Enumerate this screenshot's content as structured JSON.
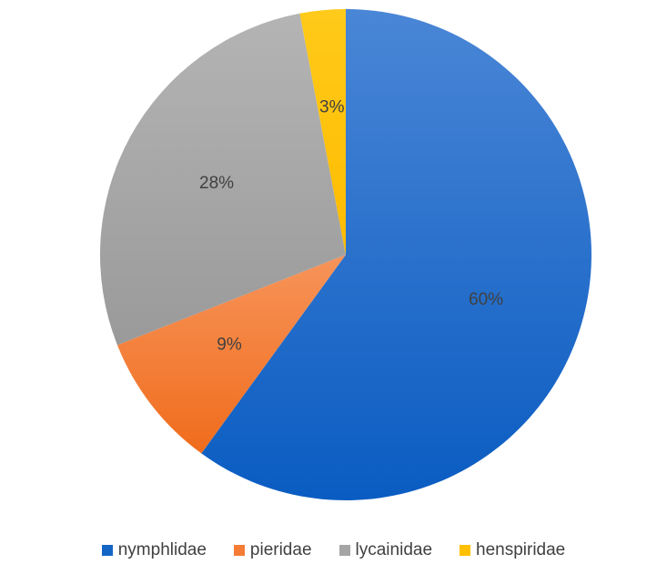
{
  "chart_data": {
    "type": "pie",
    "title": "",
    "slices": [
      {
        "name": "nymphlidae",
        "value": 60,
        "label": "60%",
        "color": "#1565C7"
      },
      {
        "name": "pieridae",
        "value": 9,
        "label": "9%",
        "color": "#F47C35"
      },
      {
        "name": "lycainidae",
        "value": 28,
        "label": "28%",
        "color": "#A5A5A5"
      },
      {
        "name": "henspiridae",
        "value": 3,
        "label": "3%",
        "color": "#FFC000"
      }
    ],
    "start_angle_deg": 0,
    "direction": "clockwise",
    "legend_position": "bottom"
  }
}
